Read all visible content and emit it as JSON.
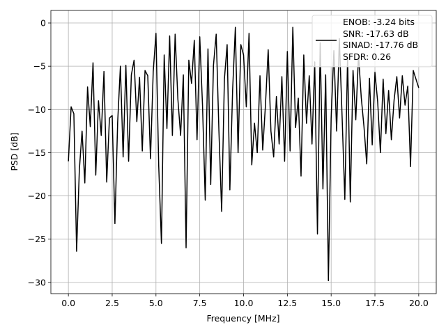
{
  "chart_data": {
    "type": "line",
    "xlabel": "Frequency [MHz]",
    "ylabel": "PSD [dB]",
    "x": [
      0,
      0.15625,
      0.3125,
      0.46875,
      0.625,
      0.78125,
      0.9375,
      1.09375,
      1.25,
      1.40625,
      1.5625,
      1.71875,
      1.875,
      2.03125,
      2.1875,
      2.34375,
      2.5,
      2.65625,
      2.8125,
      2.96875,
      3.125,
      3.28125,
      3.4375,
      3.59375,
      3.75,
      3.90625,
      4.0625,
      4.21875,
      4.375,
      4.53125,
      4.6875,
      4.84375,
      5,
      5.15625,
      5.3125,
      5.46875,
      5.625,
      5.78125,
      5.9375,
      6.09375,
      6.25,
      6.40625,
      6.5625,
      6.71875,
      6.875,
      7.03125,
      7.1875,
      7.34375,
      7.5,
      7.65625,
      7.8125,
      7.96875,
      8.125,
      8.28125,
      8.4375,
      8.59375,
      8.75,
      8.90625,
      9.0625,
      9.21875,
      9.375,
      9.53125,
      9.6875,
      9.84375,
      10,
      10.15625,
      10.3125,
      10.46875,
      10.625,
      10.78125,
      10.9375,
      11.09375,
      11.25,
      11.40625,
      11.5625,
      11.71875,
      11.875,
      12.03125,
      12.1875,
      12.34375,
      12.5,
      12.65625,
      12.8125,
      12.96875,
      13.125,
      13.28125,
      13.4375,
      13.59375,
      13.75,
      13.90625,
      14.0625,
      14.21875,
      14.375,
      14.53125,
      14.6875,
      14.84375,
      15,
      15.15625,
      15.3125,
      15.46875,
      15.625,
      15.78125,
      15.9375,
      16.09375,
      16.25,
      16.40625,
      16.5625,
      16.71875,
      16.875,
      17.03125,
      17.1875,
      17.34375,
      17.5,
      17.65625,
      17.8125,
      17.96875,
      18.125,
      18.28125,
      18.4375,
      18.59375,
      18.75,
      18.90625,
      19.0625,
      19.21875,
      19.375,
      19.53125,
      19.6875,
      19.84375,
      20
    ],
    "series": [
      {
        "name": "ENOB: -3.24 bits\nSNR: -17.63 dB\nSINAD: -17.76 dB\nSFDR: 0.26",
        "color": "#000000",
        "values": [
          -16,
          -9.7,
          -10.5,
          -26.4,
          -17,
          -12.5,
          -18.5,
          -7.4,
          -12,
          -4.6,
          -17.6,
          -9,
          -13,
          -5.6,
          -18.4,
          -11,
          -10.7,
          -23.2,
          -11.5,
          -5,
          -15.5,
          -4.9,
          -16,
          -6,
          -4.3,
          -11.4,
          -6.3,
          -14.8,
          -5.5,
          -6.1,
          -15.7,
          -5.6,
          -1.2,
          -16.5,
          -25.5,
          -3.7,
          -12.2,
          -1.5,
          -13,
          -1.3,
          -8.8,
          -13,
          -6,
          -26,
          -4.3,
          -7,
          -2,
          -13.5,
          -1.6,
          -9.5,
          -20.5,
          -3,
          -18.7,
          -4.9,
          -1.3,
          -12.5,
          -21.8,
          -6.5,
          -2.5,
          -19.3,
          -7.8,
          -0.5,
          -15,
          -2.5,
          -3.7,
          -9.7,
          -1.2,
          -16.4,
          -11.6,
          -15,
          -6.1,
          -14.7,
          -9.5,
          -3.1,
          -12.5,
          -15.5,
          -8.5,
          -14,
          -6.2,
          -16,
          -3.3,
          -14.8,
          -0.5,
          -12.1,
          -8.7,
          -17.7,
          -3.7,
          -11.6,
          -6.1,
          -14,
          -4.5,
          -24.4,
          -2.3,
          -19.2,
          -6,
          -29.8,
          -11,
          -3.2,
          -12.5,
          -1.8,
          -10.8,
          -20.4,
          -4,
          -20.7,
          -5.5,
          -11.2,
          -3.7,
          -8.6,
          -12,
          -16.3,
          -6.4,
          -14.1,
          -5.7,
          -9.1,
          -15,
          -6.5,
          -12.8,
          -7.8,
          -13.5,
          -8.9,
          -6.2,
          -11,
          -6.1,
          -9.5,
          -7.3,
          -16.6,
          -5.5,
          -6.5,
          -7.5
        ]
      }
    ],
    "xlim": [
      -1,
      21
    ],
    "xticks": [
      {
        "value": 0,
        "label": "0.0"
      },
      2.5,
      {
        "value": 5,
        "label": "5.0"
      },
      7.5,
      {
        "value": 10,
        "label": "10.0"
      },
      12.5,
      {
        "value": 15,
        "label": "15.0"
      },
      17.5,
      {
        "value": 20,
        "label": "20.0"
      }
    ],
    "ylim": [
      -31.3,
      1.45
    ],
    "yticks": [
      0,
      {
        "value": -5,
        "label": "−5"
      },
      {
        "value": -10,
        "label": "−10"
      },
      {
        "value": -15,
        "label": "−15"
      },
      {
        "value": -20,
        "label": "−20"
      },
      {
        "value": -25,
        "label": "−25"
      },
      {
        "value": -30,
        "label": "−30"
      }
    ],
    "grid": true,
    "legend": "upper right"
  }
}
